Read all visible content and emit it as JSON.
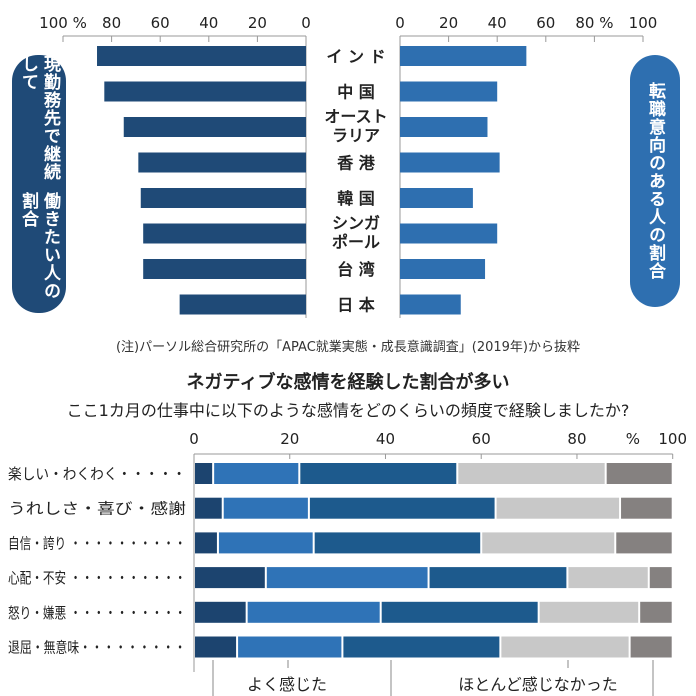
{
  "chart_data": [
    {
      "type": "bar",
      "orientation": "horizontal-butterfly",
      "categories": [
        "インド",
        "中国",
        "オーストラリア",
        "香港",
        "韓国",
        "シンガポール",
        "台湾",
        "日本"
      ],
      "category_labels": [
        "イ ン ド",
        "中 国",
        "オースト|ラリア",
        "香 港",
        "韓 国",
        "シンガ|ポール",
        "台 湾",
        "日 本"
      ],
      "series": [
        {
          "name": "現勤務先で継続して働きたい人の割合",
          "label_lines": [
            "現勤務先で継続して",
            "働きたい人の割合"
          ],
          "values": [
            86,
            83,
            75,
            69,
            68,
            67,
            67,
            52
          ],
          "color": "#1f4a77",
          "direction": "left"
        },
        {
          "name": "転職意向のある人の割合",
          "label_lines": [
            "転職意向のある人の割合"
          ],
          "values": [
            52,
            40,
            36,
            41,
            30,
            40,
            35,
            25
          ],
          "color": "#2e6fb0",
          "direction": "right"
        }
      ],
      "left_ticks": [
        "100 %",
        "80",
        "60",
        "40",
        "20",
        "0"
      ],
      "right_ticks": [
        "0",
        "20",
        "40",
        "60",
        "80 %",
        "100"
      ],
      "xlim": [
        0,
        100
      ],
      "unit": "%",
      "note": "(注)パーソル総合研究所の「APAC就業実態・成長意識調査」(2019年)から抜粋"
    },
    {
      "type": "bar",
      "orientation": "horizontal-stacked",
      "title": "ネガティブな感情を経験した割合が多い",
      "subtitle": "ここ1カ月の仕事中に以下のような感情をどのくらいの頻度で経験しましたか?",
      "categories": [
        "楽しい・わくわく・・・・・",
        "うれしさ・喜び・感謝",
        "自信・誇り ・・・・・・・・・・",
        "心配・不安 ・・・・・・・・・・",
        "怒り・嫌悪 ・・・・・・・・・・",
        "退屈・無意味・・・・・・・・・"
      ],
      "segments": [
        [
          4,
          18,
          33,
          31,
          14
        ],
        [
          6,
          18,
          39,
          26,
          11
        ],
        [
          5,
          20,
          35,
          28,
          12
        ],
        [
          15,
          34,
          29,
          17,
          5
        ],
        [
          11,
          28,
          33,
          21,
          7
        ],
        [
          9,
          22,
          33,
          27,
          9
        ]
      ],
      "segment_colors": [
        "#1c446f",
        "#2f73b7",
        "#1d5a8d",
        "#c8c8c8",
        "#858180"
      ],
      "ticks": [
        "0",
        "20",
        "40",
        "60",
        "80",
        "%",
        "100"
      ],
      "xlim": [
        0,
        100
      ],
      "legend_labels": [
        "よく感じた",
        "ほとんど感じなかった"
      ],
      "legend_placement": "bottom"
    }
  ]
}
